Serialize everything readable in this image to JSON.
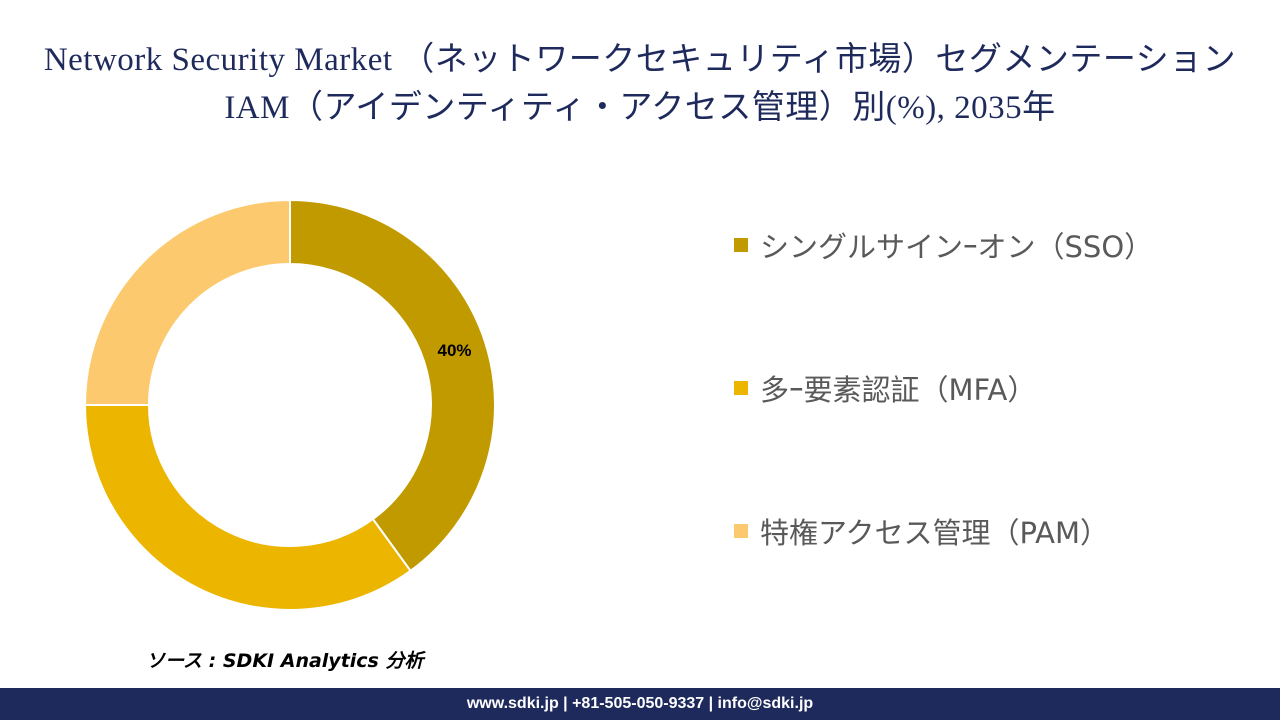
{
  "header": {
    "title": "Network Security Market （ネットワークセキュリティ市場）セグメンテーションIAM（アイデンティティ・アクセス管理）別(%), 2035年"
  },
  "chart_data": {
    "type": "pie",
    "subtype": "donut",
    "categories": [
      "シングルサインｰオン（SSO）",
      "多ｰ要素認証（MFA）",
      "特権アクセス管理（PAM）"
    ],
    "values": [
      40,
      35,
      25
    ],
    "data_labels": [
      "40%",
      "",
      ""
    ],
    "colors": [
      "#c19a00",
      "#ecb500",
      "#fcc96e"
    ],
    "legend_position": "right"
  },
  "source": {
    "text": "ソース : SDKI Analytics 分析"
  },
  "footer": {
    "text": "www.sdki.jp | +81-505-050-9337 | info@sdki.jp"
  }
}
